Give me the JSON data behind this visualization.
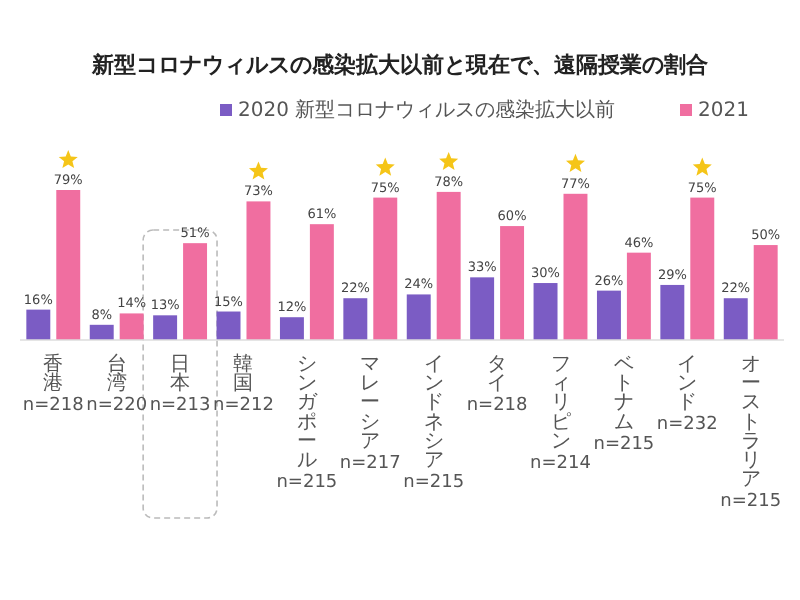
{
  "chart_data": {
    "type": "bar",
    "title": "新型コロナウィルスの感染拡大以前と現在で、遠隔授業の割合",
    "categories": [
      "香港\nn=218",
      "台湾\nn=220",
      "日本\nn=213",
      "韓国\nn=212",
      "シンガポール\nn=215",
      "マレーシア\nn=217",
      "インドネシア\nn=215",
      "タイ\nn=218",
      "フィリピン\nn=214",
      "ベトナム\nn=215",
      "インド\nn=232",
      "オーストラリア\nn=215"
    ],
    "series": [
      {
        "name": "2020 新型コロナウィルスの感染拡大以前",
        "color": "#7b5cc4",
        "values": [
          16,
          8,
          13,
          15,
          12,
          22,
          24,
          33,
          30,
          26,
          29,
          22
        ],
        "value_labels": [
          "16%",
          "8%",
          "13%",
          "15%",
          "12%",
          "22%",
          "24%",
          "33%",
          "30%",
          "26%",
          "29%",
          "22%"
        ]
      },
      {
        "name": "2021",
        "color": "#f06ea0",
        "values": [
          79,
          14,
          51,
          73,
          61,
          75,
          78,
          60,
          77,
          46,
          75,
          50
        ],
        "value_labels": [
          "79%",
          "14%",
          "51%",
          "73%",
          "61%",
          "75%",
          "78%",
          "60%",
          "77%",
          "46%",
          "75%",
          "50%"
        ]
      }
    ],
    "tick_labels": "x",
    "legend": "top right"
  }
}
